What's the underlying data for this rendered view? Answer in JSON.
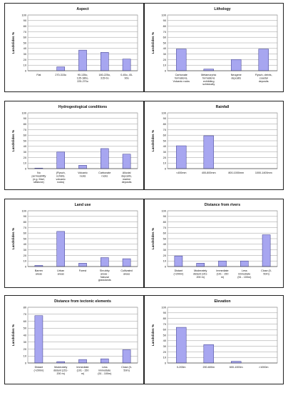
{
  "chart_data": [
    {
      "type": "bar",
      "title": "Aspect",
      "ylabel": "Landslides %",
      "ylim": [
        0,
        100
      ],
      "yticks": [
        0,
        10,
        20,
        30,
        40,
        50,
        60,
        70,
        80,
        90,
        100
      ],
      "grid": true,
      "categories": [
        [
          "Flat"
        ],
        [
          "270-315o"
        ],
        [
          "90-135o,",
          "135-180o,",
          "225-270o"
        ],
        [
          "180-225o,",
          "315-0o"
        ],
        [
          "0-45o, 45-",
          "90o"
        ]
      ],
      "values": [
        0,
        7,
        37,
        33,
        21
      ]
    },
    {
      "type": "bar",
      "title": "Lithology",
      "ylabel": "Landslides %",
      "ylim": [
        0,
        100
      ],
      "yticks": [
        0,
        10,
        20,
        30,
        40,
        50,
        60,
        70,
        80,
        90,
        100
      ],
      "grid": true,
      "categories": [
        [
          "Carbonate",
          "formations,",
          "Volcanic rocks"
        ],
        [
          "Metamorphic",
          "formations",
          "exhibiting",
          "schistocity"
        ],
        [
          "Neogene",
          "deposits"
        ],
        [
          "Flysch, debris,",
          "coastal",
          "deposits"
        ]
      ],
      "values": [
        39,
        3,
        20,
        39
      ]
    },
    {
      "type": "bar",
      "title": "Hydrogeological conditions",
      "ylabel": "Landslides %",
      "ylim": [
        0,
        100
      ],
      "yticks": [
        0,
        10,
        20,
        30,
        40,
        50,
        60,
        70,
        80,
        90,
        100
      ],
      "grid": true,
      "categories": [
        [
          "No",
          "permeability",
          "(e.g. Marl,",
          "siltstone)"
        ],
        [
          "(Flysch,",
          "schists,",
          "volcanic",
          "rocks)"
        ],
        [
          "Volcanic",
          "rocks"
        ],
        [
          "Carbonate",
          "rocks"
        ],
        [
          "Alluvial",
          "deposits,",
          "marine",
          "deposits"
        ]
      ],
      "values": [
        1,
        30,
        6,
        36,
        26
      ]
    },
    {
      "type": "bar",
      "title": "Rainfall",
      "ylabel": "Landslides %",
      "ylim": [
        0,
        100
      ],
      "yticks": [
        0,
        10,
        20,
        30,
        40,
        50,
        60,
        70,
        80,
        90,
        100
      ],
      "grid": true,
      "categories": [
        [
          "<400mm"
        ],
        [
          "400-800mm"
        ],
        [
          "800-1000mm"
        ],
        [
          "1000-1400mm"
        ]
      ],
      "values": [
        41,
        59,
        0,
        0
      ]
    },
    {
      "type": "bar",
      "title": "Land use",
      "ylabel": "Landslides %",
      "ylim": [
        0,
        100
      ],
      "yticks": [
        0,
        10,
        20,
        30,
        40,
        50,
        60,
        70,
        80,
        90,
        100
      ],
      "grid": true,
      "categories": [
        [
          "Barren",
          "areas"
        ],
        [
          "Urban",
          "areas"
        ],
        [
          "Forest"
        ],
        [
          "Shrubby",
          "areas -",
          "Natural",
          "grasslands"
        ],
        [
          "Cultivated",
          "areas"
        ]
      ],
      "values": [
        2,
        63,
        6,
        16,
        14
      ]
    },
    {
      "type": "bar",
      "title": "Distance from rivers",
      "ylabel": "Landslides %",
      "ylim": [
        0,
        100
      ],
      "yticks": [
        0,
        10,
        20,
        30,
        40,
        50,
        60,
        70,
        80,
        90,
        100
      ],
      "grid": true,
      "categories": [
        [
          "Distant",
          "(>200m)"
        ],
        [
          "Moderately",
          "distant (151-",
          "200 m)"
        ],
        [
          "Immediate",
          "(101 - 150",
          "m)"
        ],
        [
          "Less",
          "immediate",
          "(51 - 100m)"
        ],
        [
          "Close (0-",
          "50m)"
        ]
      ],
      "values": [
        19,
        6,
        10,
        10,
        57
      ]
    },
    {
      "type": "bar",
      "title": "Distance from tectonic elements",
      "ylabel": "Landslides %",
      "ylim": [
        0,
        80
      ],
      "yticks": [
        0,
        10,
        20,
        30,
        40,
        50,
        60,
        70,
        80
      ],
      "grid": true,
      "categories": [
        [
          "Distant",
          "(>200m)"
        ],
        [
          "Moderately",
          "distant (151-",
          "200 m)"
        ],
        [
          "Immediate",
          "(101 - 150",
          "m)"
        ],
        [
          "Less",
          "immediate",
          "(51 - 100m)"
        ],
        [
          "Close (0-",
          "50m)"
        ]
      ],
      "values": [
        68,
        2,
        5,
        6,
        19
      ]
    },
    {
      "type": "bar",
      "title": "Elevation",
      "ylabel": "Landslides %",
      "ylim": [
        0,
        100
      ],
      "yticks": [
        0,
        10,
        20,
        30,
        40,
        50,
        60,
        70,
        80,
        90,
        100
      ],
      "grid": true,
      "categories": [
        [
          "0-200m"
        ],
        [
          "200-600m"
        ],
        [
          "600-1000m"
        ],
        [
          ">1000m"
        ]
      ],
      "values": [
        64,
        33,
        3,
        0
      ]
    }
  ]
}
